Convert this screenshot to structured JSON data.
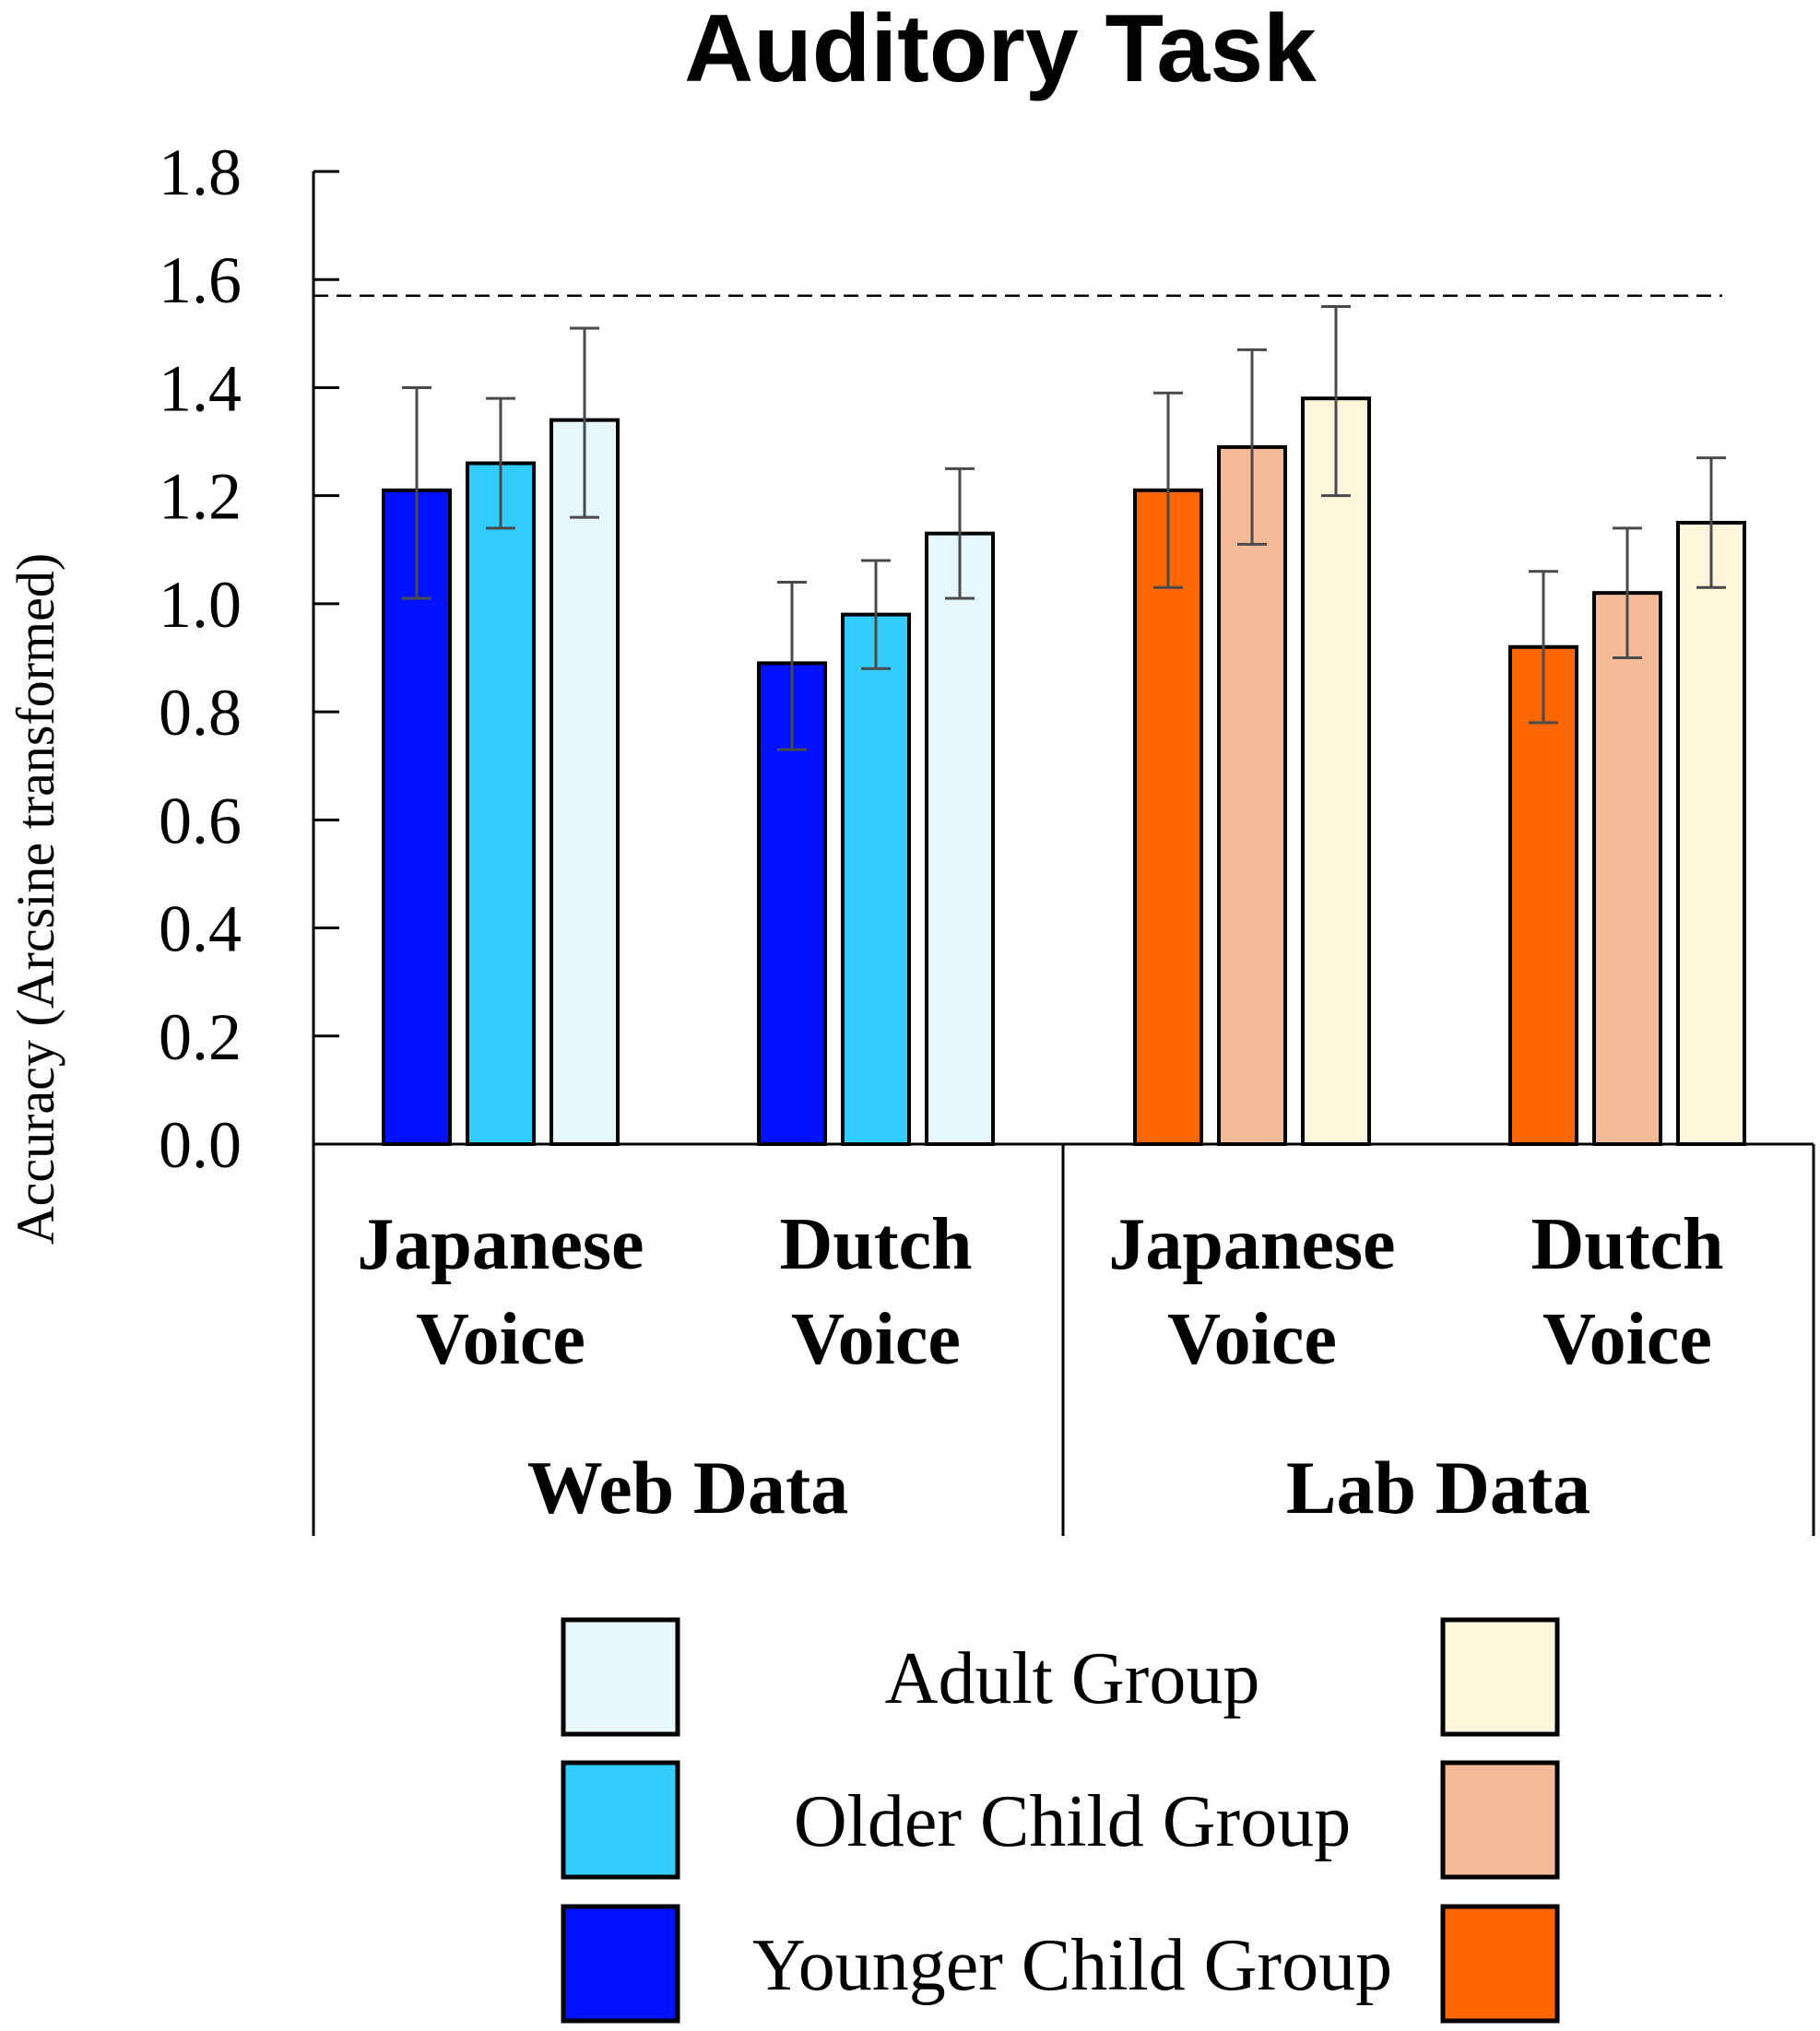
{
  "chart_data": {
    "type": "bar",
    "title": "Auditory Task",
    "ylabel": "Accuracy (Arcsine transformed)",
    "xlabel": "",
    "ylim": [
      0,
      1.8
    ],
    "yticks": [
      "0.0",
      "0.2",
      "0.4",
      "0.6",
      "0.8",
      "1.0",
      "1.2",
      "1.4",
      "1.6",
      "1.8"
    ],
    "reference_line": 1.57,
    "groups": [
      {
        "name": "Web Data",
        "categories": [
          {
            "label_lines": [
              "Japanese",
              "Voice"
            ],
            "values": [
              1.21,
              1.26,
              1.34
            ],
            "err_low": [
              1.01,
              1.14,
              1.16
            ],
            "err_high": [
              1.4,
              1.38,
              1.51
            ]
          },
          {
            "label_lines": [
              "Dutch",
              "Voice"
            ],
            "values": [
              0.89,
              0.98,
              1.13
            ],
            "err_low": [
              0.73,
              0.88,
              1.01
            ],
            "err_high": [
              1.04,
              1.08,
              1.25
            ]
          }
        ]
      },
      {
        "name": "Lab Data",
        "categories": [
          {
            "label_lines": [
              "Japanese",
              "Voice"
            ],
            "values": [
              1.21,
              1.29,
              1.38
            ],
            "err_low": [
              1.03,
              1.11,
              1.2
            ],
            "err_high": [
              1.39,
              1.47,
              1.55
            ]
          },
          {
            "label_lines": [
              "Dutch",
              "Voice"
            ],
            "values": [
              0.92,
              1.02,
              1.15
            ],
            "err_low": [
              0.78,
              0.9,
              1.03
            ],
            "err_high": [
              1.06,
              1.14,
              1.27
            ]
          }
        ]
      }
    ],
    "series": [
      "Younger Child Group",
      "Older Child Group",
      "Adult Group"
    ],
    "colors": {
      "Web Data": [
        "#0011ff",
        "#33ccff",
        "#e6f8fd"
      ],
      "Lab Data": [
        "#ff6600",
        "#f5bb99",
        "#fff6dc"
      ]
    },
    "legend": {
      "position": "bottom",
      "entries": [
        "Adult Group",
        "Older Child Group",
        "Younger Child Group"
      ]
    }
  }
}
